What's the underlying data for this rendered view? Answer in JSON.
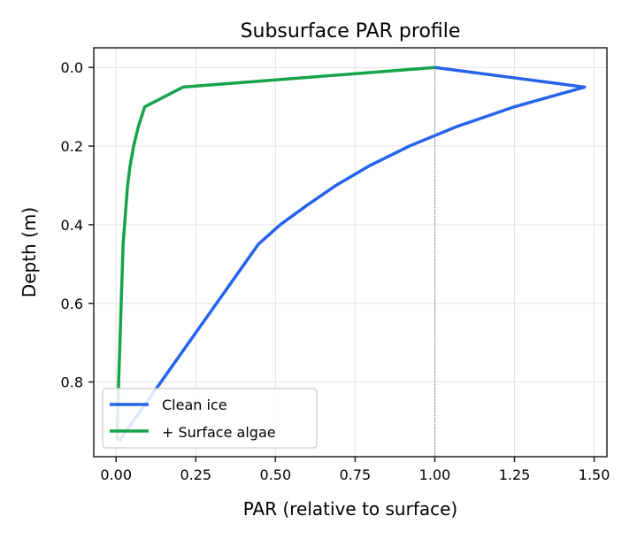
{
  "chart_data": {
    "type": "line",
    "title": "Subsurface PAR profile",
    "xlabel": "PAR (relative to surface)",
    "ylabel": "Depth (m)",
    "xlim": [
      -0.07,
      1.54
    ],
    "ylim": [
      0.99,
      -0.05
    ],
    "y_inverted": true,
    "grid": true,
    "x_ticks": [
      "0.00",
      "0.25",
      "0.50",
      "0.75",
      "1.00",
      "1.25",
      "1.50"
    ],
    "x_tick_values": [
      0,
      0.25,
      0.5,
      0.75,
      1.0,
      1.25,
      1.5
    ],
    "y_ticks": [
      "0.0",
      "0.2",
      "0.4",
      "0.6",
      "0.8"
    ],
    "y_tick_values": [
      0,
      0.2,
      0.4,
      0.6,
      0.8
    ],
    "reference_line": {
      "x": 1.0,
      "style": "dotted",
      "color": "#333333"
    },
    "legend_placement": "lower-left",
    "series": [
      {
        "name": "Clean ice",
        "color": "#2563eb",
        "points": [
          [
            1.0,
            0.0
          ],
          [
            1.47,
            0.05
          ],
          [
            1.25,
            0.1
          ],
          [
            1.07,
            0.15
          ],
          [
            0.92,
            0.2
          ],
          [
            0.795,
            0.25
          ],
          [
            0.69,
            0.3
          ],
          [
            0.6,
            0.35
          ],
          [
            0.515,
            0.4
          ],
          [
            0.446,
            0.45
          ],
          [
            0.01,
            0.95
          ]
        ]
      },
      {
        "name": "+ Surface algae",
        "color": "#16a34a",
        "points": [
          [
            1.0,
            0.0
          ],
          [
            0.21,
            0.05
          ],
          [
            0.09,
            0.1
          ],
          [
            0.07,
            0.15
          ],
          [
            0.055,
            0.2
          ],
          [
            0.044,
            0.25
          ],
          [
            0.036,
            0.3
          ],
          [
            0.022,
            0.45
          ],
          [
            0.008,
            0.8
          ],
          [
            0.003,
            0.95
          ]
        ]
      }
    ]
  }
}
